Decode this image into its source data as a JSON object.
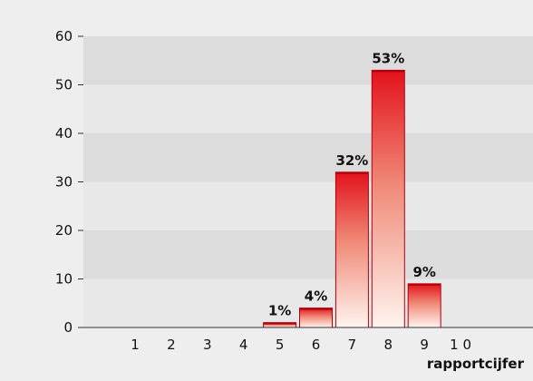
{
  "chart_data": {
    "type": "bar",
    "categories": [
      "1",
      "2",
      "3",
      "4",
      "5",
      "6",
      "7",
      "8",
      "9",
      "1 0"
    ],
    "values": [
      0,
      0,
      0,
      0,
      1,
      4,
      32,
      53,
      9,
      0
    ],
    "data_labels": [
      "",
      "",
      "",
      "",
      "1%",
      "4%",
      "32%",
      "53%",
      "9%",
      ""
    ],
    "xlabel": "rapportcijfer",
    "ylabel": "",
    "ylim": [
      0,
      60
    ],
    "yticks": [
      "0",
      "10",
      "20",
      "30",
      "40",
      "50",
      "60"
    ],
    "grid": "alternating horizontal bands",
    "colors": {
      "background": "#eeeeee",
      "band_dark": "#dcdcdc",
      "band_light": "#e8e8e8",
      "bar_top": "#e3121b",
      "bar_bottom": "#fff4ef",
      "bar_edge": "#b3000c"
    }
  }
}
